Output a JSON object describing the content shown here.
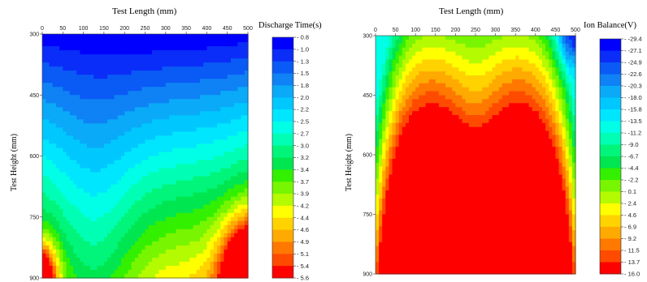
{
  "chart_data": [
    {
      "type": "heatmap",
      "title": "Test Length (mm)",
      "ylabel": "Test Height (mm)",
      "colorbar_label": "Discharge Time(s)",
      "x_ticks": [
        "0",
        "50",
        "100",
        "150",
        "200",
        "250",
        "300",
        "350",
        "400",
        "450",
        "500"
      ],
      "y_ticks": [
        "300",
        "450",
        "600",
        "750",
        "900"
      ],
      "xlim": [
        0,
        500
      ],
      "ylim": [
        300,
        900
      ],
      "y_inverted": true,
      "colorbar_ticks": [
        "0.8",
        "1.0",
        "1.3",
        "1.5",
        "1.8",
        "2.0",
        "2.2",
        "2.5",
        "2.7",
        "3.0",
        "3.2",
        "3.4",
        "3.7",
        "3.9",
        "4.2",
        "4.4",
        "4.6",
        "4.9",
        "5.1",
        "5.4",
        "5.6"
      ],
      "colors": [
        "#0000ff",
        "#0a2df8",
        "#0a5af5",
        "#0f82f5",
        "#0aaaf8",
        "#00c8ff",
        "#00e6ff",
        "#00ffe6",
        "#00ffb4",
        "#00f57a",
        "#00e650",
        "#32f000",
        "#78f500",
        "#b4fa00",
        "#ffff00",
        "#ffd200",
        "#ffaa00",
        "#ff7800",
        "#ff4b00",
        "#ff0000"
      ],
      "grid": false
    },
    {
      "type": "heatmap",
      "title": "Test Length (mm)",
      "ylabel": "Test Height (mm)",
      "colorbar_label": "Ion Balance(V)",
      "x_ticks": [
        "0",
        "50",
        "100",
        "150",
        "200",
        "250",
        "300",
        "350",
        "400",
        "450",
        "500"
      ],
      "y_ticks": [
        "300",
        "450",
        "600",
        "750",
        "900"
      ],
      "xlim": [
        0,
        500
      ],
      "ylim": [
        300,
        900
      ],
      "y_inverted": true,
      "colorbar_ticks": [
        "-29.4",
        "-27.1",
        "-24.9",
        "-22.6",
        "-20.3",
        "-18.0",
        "-15.8",
        "-13.5",
        "-11.2",
        "-9.0",
        "-6.7",
        "-4.4",
        "-2.2",
        "0.1",
        "2.4",
        "4.6",
        "6.9",
        "9.2",
        "11.5",
        "13.7",
        "16.0"
      ],
      "colors": [
        "#0000ff",
        "#0a2df8",
        "#0a5af5",
        "#0f82f5",
        "#0aaaf8",
        "#00c8ff",
        "#00e6ff",
        "#00ffe6",
        "#00ffb4",
        "#00f57a",
        "#00e650",
        "#32f000",
        "#78f500",
        "#b4fa00",
        "#ffff00",
        "#ffd200",
        "#ffaa00",
        "#ff7800",
        "#ff4b00",
        "#ff0000"
      ],
      "grid": false
    }
  ]
}
